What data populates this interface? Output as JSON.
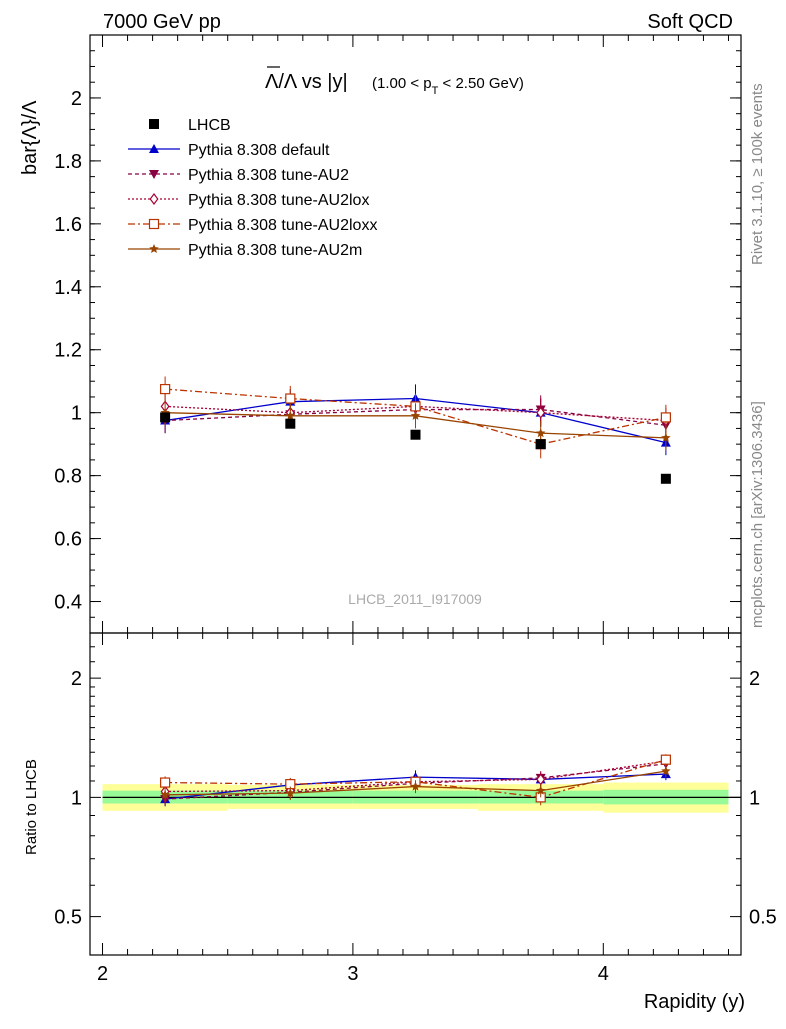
{
  "header": {
    "left": "7000 GeV pp",
    "right": "Soft QCD"
  },
  "side_labels": {
    "rivet": "Rivet 3.1.10, ≥ 100k events",
    "mcplots": "mcplots.cern.ch [arXiv:1306.3436]"
  },
  "watermark": "LHCB_2011_I917009",
  "plot_title": {
    "main": "Λ/Λ vs |y|",
    "sub": "(1.00 < p",
    "sub_index": "T",
    "sub_tail": " < 2.50 GeV)"
  },
  "colors": {
    "data": "#000000",
    "default": "#0000cc",
    "au2": "#880044",
    "au2lox": "#aa0033",
    "au2loxx": "#bb3300",
    "au2m": "#994400",
    "band_inner": "#98fb98",
    "band_outer": "#ffff99"
  },
  "chart_data": [
    {
      "type": "scatter",
      "ylabel": "bar{Λ}/Λ",
      "ylim": [
        0.3,
        2.2
      ],
      "yticks": [
        0.4,
        0.6,
        0.8,
        1,
        1.2,
        1.4,
        1.6,
        1.8,
        2
      ],
      "ytick_labels": [
        "0.4",
        "0.6",
        "0.8",
        "1",
        "1.2",
        "1.4",
        "1.6",
        "1.8",
        "2"
      ],
      "xlim": [
        1.95,
        4.55
      ],
      "x": [
        2.25,
        2.75,
        3.25,
        3.75,
        4.25
      ],
      "legend_position": "top-left",
      "series": [
        {
          "key": "data",
          "name": "LHCB",
          "marker": "filled-square",
          "dash": "",
          "values": [
            0.985,
            0.965,
            0.93,
            0.9,
            0.79
          ],
          "err": [
            0,
            0,
            0,
            0,
            0
          ]
        },
        {
          "key": "default",
          "name": "Pythia 8.308 default",
          "marker": "filled-triangle-up",
          "dash": "",
          "values": [
            0.975,
            1.035,
            1.045,
            1.0,
            0.905
          ],
          "err": [
            0.04,
            0.04,
            0.045,
            0.045,
            0.04
          ]
        },
        {
          "key": "au2",
          "name": "Pythia 8.308 tune-AU2",
          "marker": "filled-triangle-down",
          "dash": "4,3",
          "values": [
            0.975,
            0.995,
            1.01,
            1.01,
            0.96
          ],
          "err": [
            0.04,
            0.04,
            0.04,
            0.045,
            0.04
          ]
        },
        {
          "key": "au2lox",
          "name": "Pythia 8.308 tune-AU2lox",
          "marker": "open-diamond",
          "dash": "2,2",
          "values": [
            1.02,
            1.0,
            1.02,
            1.0,
            0.975
          ],
          "err": [
            0.04,
            0.04,
            0.04,
            0.045,
            0.04
          ]
        },
        {
          "key": "au2loxx",
          "name": "Pythia 8.308 tune-AU2loxx",
          "marker": "open-square",
          "dash": "7,3,2,3",
          "values": [
            1.075,
            1.045,
            1.02,
            0.9,
            0.985
          ],
          "err": [
            0.04,
            0.04,
            0.04,
            0.045,
            0.04
          ]
        },
        {
          "key": "au2m",
          "name": "Pythia 8.308 tune-AU2m",
          "marker": "star",
          "dash": "",
          "values": [
            1.0,
            0.99,
            0.99,
            0.935,
            0.92
          ],
          "err": [
            0.04,
            0.04,
            0.04,
            0.04,
            0.04
          ]
        }
      ]
    },
    {
      "type": "scatter",
      "ylabel": "Ratio to LHCB",
      "log_y": true,
      "ylim": [
        0.4,
        2.6
      ],
      "yticks": [
        0.5,
        1,
        2
      ],
      "ytick_labels": [
        "0.5",
        "1",
        "2"
      ],
      "xlabel": "Rapidity (y)",
      "xlim": [
        1.95,
        4.55
      ],
      "xticks": [
        2,
        3,
        4
      ],
      "xtick_labels": [
        "2",
        "3",
        "4"
      ],
      "x": [
        2.25,
        2.75,
        3.25,
        3.75,
        4.25
      ],
      "bands": [
        {
          "x0": 2.0,
          "x1": 2.5,
          "inner": [
            0.965,
            1.04
          ],
          "outer": [
            0.925,
            1.08
          ]
        },
        {
          "x0": 2.5,
          "x1": 3.0,
          "inner": [
            0.965,
            1.04
          ],
          "outer": [
            0.935,
            1.075
          ]
        },
        {
          "x0": 3.0,
          "x1": 3.5,
          "inner": [
            0.965,
            1.04
          ],
          "outer": [
            0.935,
            1.075
          ]
        },
        {
          "x0": 3.5,
          "x1": 4.0,
          "inner": [
            0.965,
            1.04
          ],
          "outer": [
            0.925,
            1.08
          ]
        },
        {
          "x0": 4.0,
          "x1": 4.5,
          "inner": [
            0.96,
            1.045
          ],
          "outer": [
            0.915,
            1.09
          ]
        }
      ],
      "series": [
        {
          "key": "default",
          "values": [
            0.99,
            1.075,
            1.125,
            1.11,
            1.145
          ],
          "err": [
            0.04,
            0.04,
            0.045,
            0.045,
            0.04
          ]
        },
        {
          "key": "au2",
          "values": [
            0.99,
            1.03,
            1.085,
            1.12,
            1.215
          ],
          "err": [
            0.04,
            0.04,
            0.04,
            0.045,
            0.04
          ]
        },
        {
          "key": "au2lox",
          "values": [
            1.035,
            1.04,
            1.095,
            1.11,
            1.235
          ],
          "err": [
            0.04,
            0.04,
            0.04,
            0.045,
            0.04
          ]
        },
        {
          "key": "au2loxx",
          "values": [
            1.09,
            1.08,
            1.095,
            1.0,
            1.245
          ],
          "err": [
            0.04,
            0.04,
            0.04,
            0.045,
            0.04
          ]
        },
        {
          "key": "au2m",
          "values": [
            1.015,
            1.025,
            1.065,
            1.04,
            1.165
          ],
          "err": [
            0.04,
            0.04,
            0.04,
            0.04,
            0.04
          ]
        }
      ]
    }
  ]
}
